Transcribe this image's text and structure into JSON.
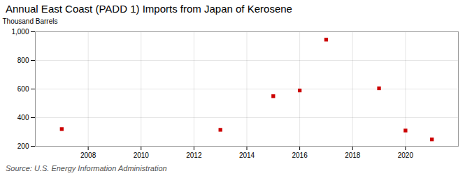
{
  "chart_data": {
    "type": "scatter",
    "title": "Annual East Coast (PADD 1) Imports from Japan of Kerosene",
    "ylabel": "Thousand Barrels",
    "source": "Source: U.S. Energy Information Administration",
    "x": [
      2007,
      2013,
      2015,
      2016,
      2017,
      2019,
      2020,
      2021
    ],
    "values": [
      320,
      315,
      550,
      590,
      945,
      605,
      310,
      248
    ],
    "color": "#cc0000",
    "marker": "square",
    "xlim": [
      2006.0,
      2022.0
    ],
    "xticks": [
      2008,
      2010,
      2012,
      2014,
      2016,
      2018,
      2020
    ],
    "ylim": [
      200,
      1000
    ],
    "yticks": [
      200,
      400,
      600,
      800,
      {
        "value": 1000,
        "label": "1,000"
      }
    ],
    "grid": true
  }
}
